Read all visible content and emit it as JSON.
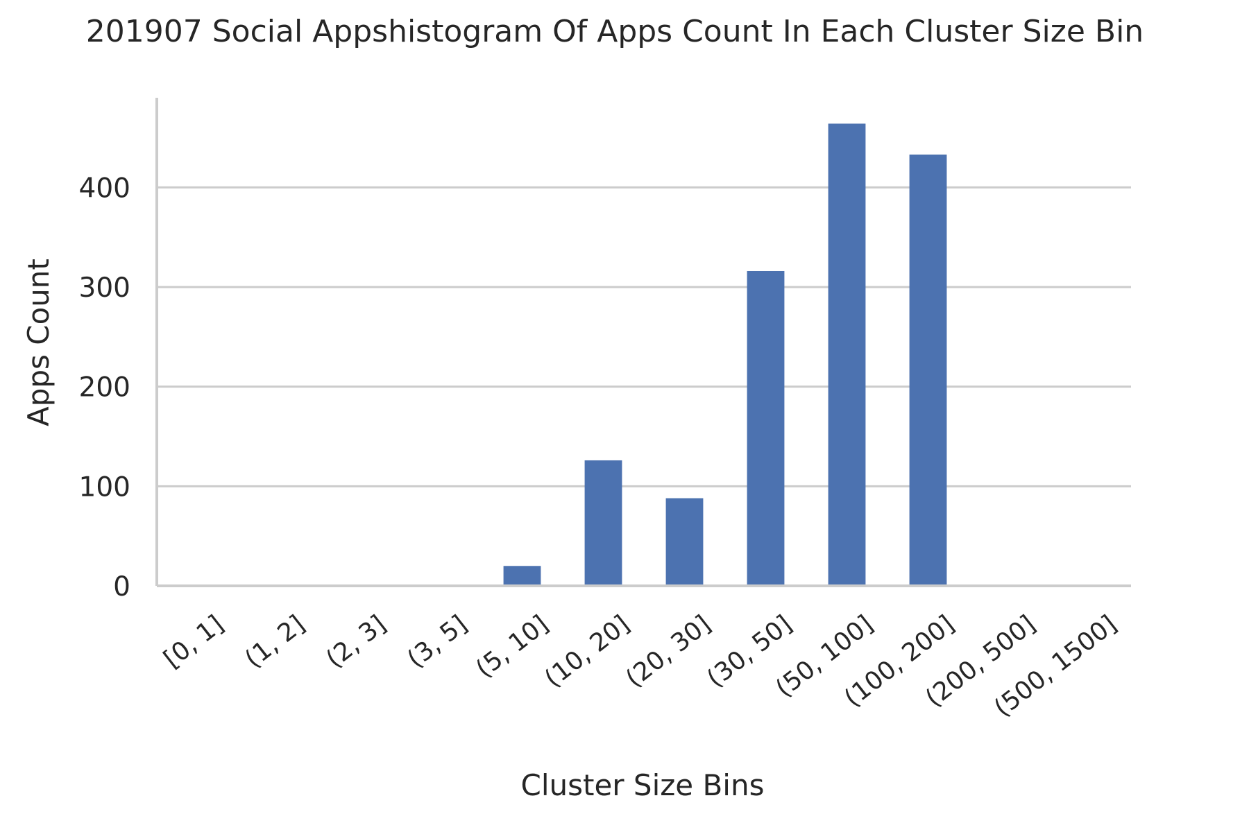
{
  "chart_data": {
    "type": "bar",
    "title": "201907 Social Appshistogram Of Apps Count In Each Cluster Size Bin",
    "xlabel": "Cluster Size Bins",
    "ylabel": "Apps Count",
    "categories": [
      "[0, 1]",
      "(1, 2]",
      "(2, 3]",
      "(3, 5]",
      "(5, 10]",
      "(10, 20]",
      "(20, 30]",
      "(30, 50]",
      "(50, 100]",
      "(100, 200]",
      "(200, 500]",
      "(500, 1500]"
    ],
    "values": [
      0,
      0,
      0,
      0,
      20,
      126,
      88,
      316,
      464,
      433,
      0,
      0
    ],
    "yticks": [
      0,
      100,
      200,
      300,
      400
    ],
    "ylim": [
      0,
      490
    ],
    "grid": true,
    "bar_color": "#4c72b0"
  }
}
